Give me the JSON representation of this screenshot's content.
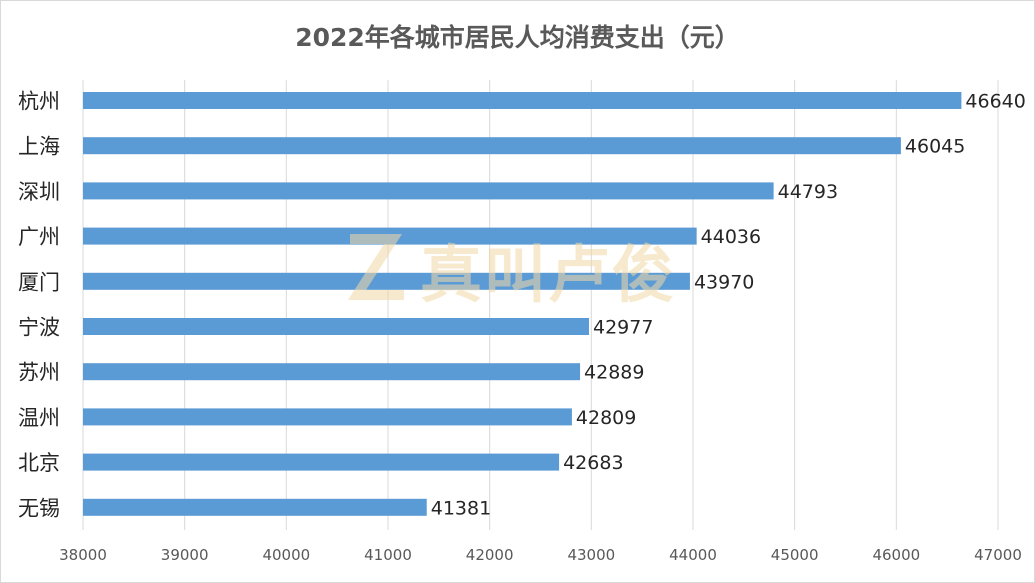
{
  "chart_data": {
    "type": "bar",
    "orientation": "horizontal",
    "title": "2022年各城市居民人均消费支出（元）",
    "categories": [
      "杭州",
      "上海",
      "深圳",
      "广州",
      "厦门",
      "宁波",
      "苏州",
      "温州",
      "北京",
      "无锡"
    ],
    "values": [
      46640,
      46045,
      44793,
      44036,
      43970,
      42977,
      42889,
      42809,
      42683,
      41381
    ],
    "value_labels": [
      "46640",
      "46045",
      "44793",
      "44036",
      "43970",
      "42977",
      "42889",
      "42809",
      "42683",
      "41381"
    ],
    "xlim": [
      38000,
      47000
    ],
    "xticks": [
      38000,
      39000,
      40000,
      41000,
      42000,
      43000,
      44000,
      45000,
      46000,
      47000
    ],
    "xtick_labels": [
      "38000",
      "39000",
      "40000",
      "41000",
      "42000",
      "43000",
      "44000",
      "45000",
      "46000",
      "47000"
    ],
    "xlabel": "",
    "ylabel": "",
    "grid": "vertical",
    "legend": "none"
  },
  "colors": {
    "bar": "#5b9bd5",
    "grid": "#d9d9d9",
    "watermark": "#f2d8a6"
  },
  "watermark": {
    "logo_letter": "Z",
    "text": "真叫卢俊"
  }
}
